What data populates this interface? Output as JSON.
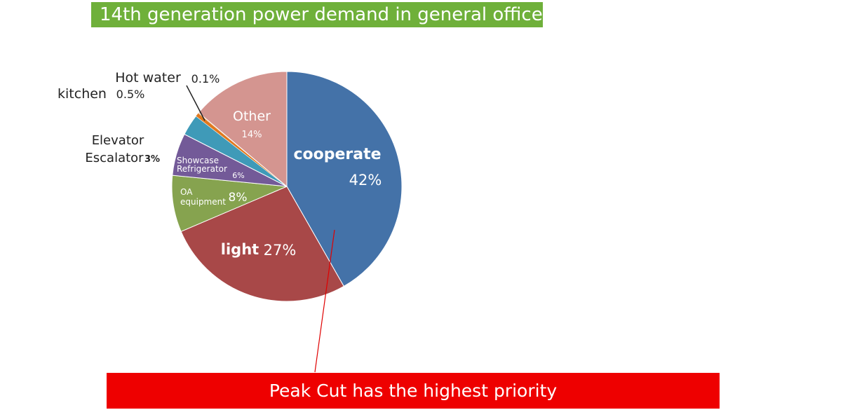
{
  "chart_data": {
    "type": "pie",
    "title": "14th generation power demand in general office",
    "slices": [
      {
        "label": "cooperate",
        "value_label": "42%",
        "value": 42,
        "color": "#4472a8"
      },
      {
        "label": "light",
        "value_label": "27%",
        "value": 27,
        "color": "#a84848"
      },
      {
        "label": "OA equipment",
        "label_lines": [
          "OA",
          "equipment"
        ],
        "value_label": "8%",
        "value": 8,
        "color": "#86a34f"
      },
      {
        "label": "Showcase Refrigerator",
        "label_lines": [
          "Showcase",
          "Refrigerator"
        ],
        "value_label": "6%",
        "value": 6,
        "color": "#735a98"
      },
      {
        "label": "Elevator Escalator",
        "label_lines": [
          "Elevator",
          "Escalator"
        ],
        "value_label": "3%",
        "value": 3,
        "color": "#3f9ab8"
      },
      {
        "label": "kitchen",
        "value_label": "0.5%",
        "value": 0.5,
        "color": "#e0781e"
      },
      {
        "label": "Hot water",
        "value_label": "0.1%",
        "value": 0.1,
        "color": "#e0781e"
      },
      {
        "label": "Other",
        "value_label": "14%",
        "value": 14,
        "color": "#d49590"
      }
    ],
    "annotation": "Peak Cut has the highest priority"
  }
}
